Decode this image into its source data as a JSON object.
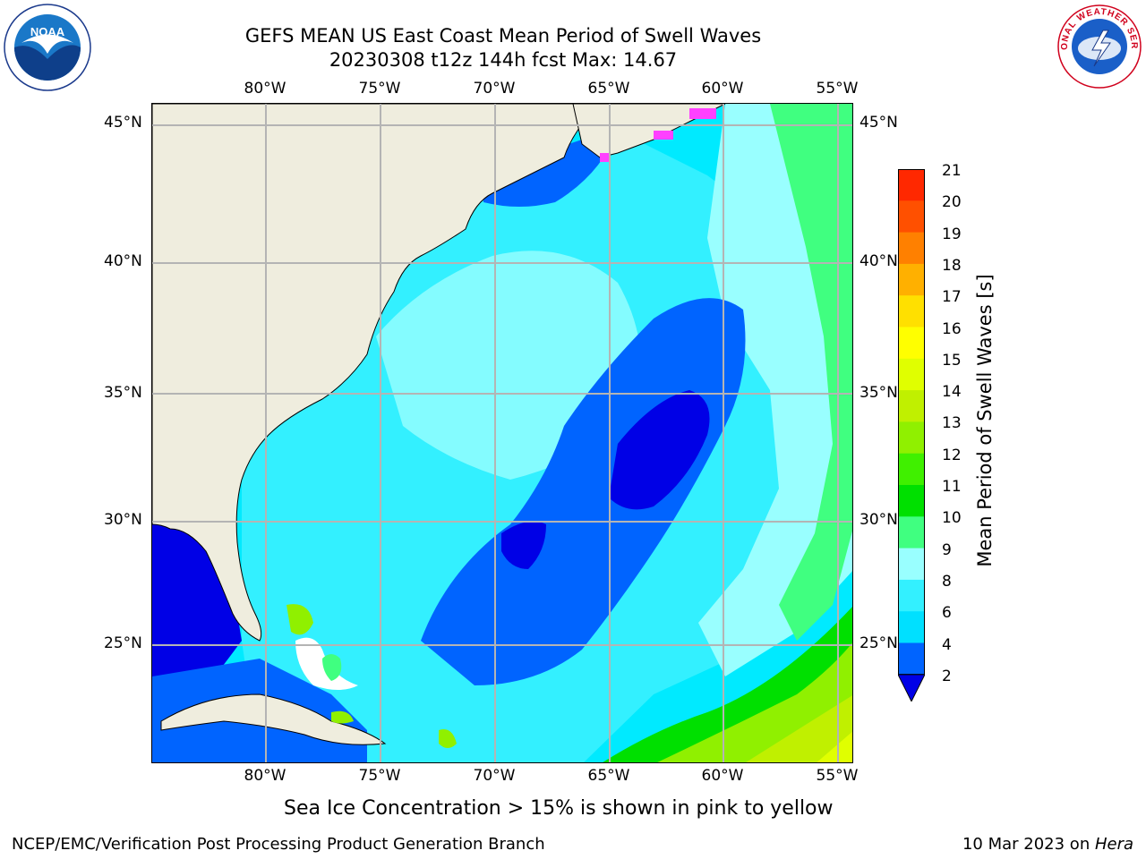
{
  "header": {
    "title_line1": "GEFS MEAN US East Coast Mean Period of Swell Waves",
    "title_line2": "20230308 t12z 144h fcst   Max: 14.67"
  },
  "logos": {
    "left": "noaa-logo",
    "right": "national-weather-service-logo",
    "left_text": "NOAA",
    "right_text": "NATIONAL WEATHER SERVICE"
  },
  "map": {
    "lon_labels": [
      "80°W",
      "75°W",
      "70°W",
      "65°W",
      "60°W",
      "55°W"
    ],
    "lat_labels": [
      "45°N",
      "40°N",
      "35°N",
      "30°N",
      "25°N"
    ],
    "land_color": "#efedde",
    "grid_color": "#b4b4b4"
  },
  "colorbar": {
    "title": "Mean Period of Swell Waves [s]",
    "ticks": [
      "2",
      "4",
      "6",
      "8",
      "9",
      "10",
      "11",
      "12",
      "13",
      "14",
      "15",
      "16",
      "17",
      "18",
      "19",
      "20",
      "21"
    ],
    "colors": [
      "#0064ff",
      "#00e0ff",
      "#33f0ff",
      "#99ffff",
      "#40ff80",
      "#00e000",
      "#40f000",
      "#90f000",
      "#c0f000",
      "#e0ff00",
      "#ffff00",
      "#ffe000",
      "#ffb000",
      "#ff8000",
      "#ff5000",
      "#ff2800"
    ],
    "under_color": "#0000e6"
  },
  "note": "Sea Ice Concentration > 15% is shown in pink to yellow",
  "footer": {
    "left": "NCEP/EMC/Verification Post Processing Product Generation Branch",
    "right_date": "10 Mar 2023 on ",
    "right_host": "Hera"
  }
}
